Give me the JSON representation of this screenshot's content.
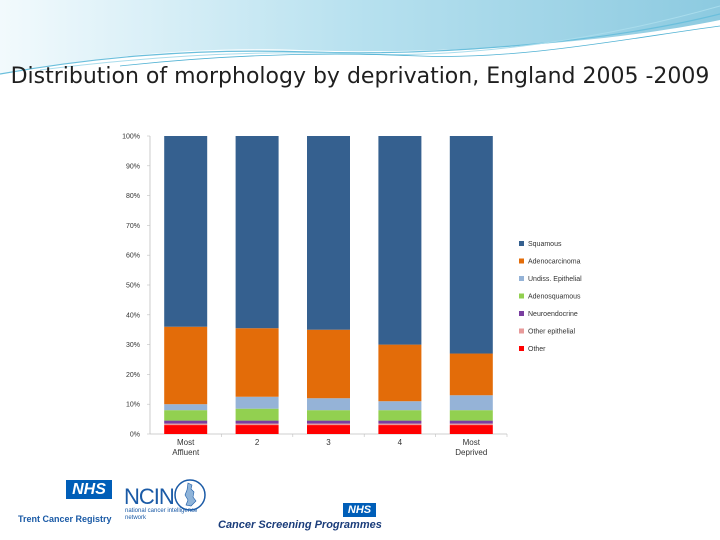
{
  "slide": {
    "title": "Distribution of morphology by deprivation, England 2005 -2009"
  },
  "logos": {
    "nhs_text": "NHS",
    "trent_cancer_registry": "Trent Cancer Registry",
    "ncin_text": "NCIN",
    "ncin_subtitle": "national cancer intelligence network",
    "cancer_screening_programmes": "Cancer Screening Programmes"
  },
  "colors": {
    "decor_blue": "#3aa5c9",
    "nhs_blue": "#005eb8"
  },
  "chart_data": {
    "type": "bar",
    "stacked": true,
    "percent_axis": true,
    "categories": [
      [
        "Most",
        "Affluent"
      ],
      [
        "2"
      ],
      [
        "3"
      ],
      [
        "4"
      ],
      [
        "Most",
        "Deprived"
      ]
    ],
    "ylim": [
      0,
      100
    ],
    "y_ticks": [
      "0%",
      "10%",
      "20%",
      "30%",
      "40%",
      "50%",
      "60%",
      "70%",
      "80%",
      "90%",
      "100%"
    ],
    "grid": false,
    "legend_position": "right",
    "series": [
      {
        "name": "Other",
        "color": "#ff0000",
        "values": [
          3,
          3,
          3,
          3,
          3
        ]
      },
      {
        "name": "Other epithelial",
        "color": "#e79a9a",
        "values": [
          0.5,
          0.5,
          0.5,
          0.5,
          0.5
        ]
      },
      {
        "name": "Neuroendocrine",
        "color": "#7a3fa0",
        "values": [
          1,
          1,
          1,
          1,
          1
        ]
      },
      {
        "name": "Adenosquamous",
        "color": "#92d050",
        "values": [
          3.5,
          4,
          3.5,
          3.5,
          3.5
        ]
      },
      {
        "name": "Undiss. Epithelial",
        "color": "#95b3d7",
        "values": [
          2,
          4,
          4,
          3,
          5
        ]
      },
      {
        "name": "Adenocarcinoma",
        "color": "#e36c09",
        "values": [
          26,
          23,
          23,
          19,
          14
        ]
      },
      {
        "name": "Squamous",
        "color": "#35608f",
        "values": [
          64,
          64.5,
          65,
          70,
          73
        ]
      }
    ],
    "legend_order": [
      "Squamous",
      "Adenocarcinoma",
      "Undiss. Epithelial",
      "Adenosquamous",
      "Neuroendocrine",
      "Other epithelial",
      "Other"
    ]
  }
}
